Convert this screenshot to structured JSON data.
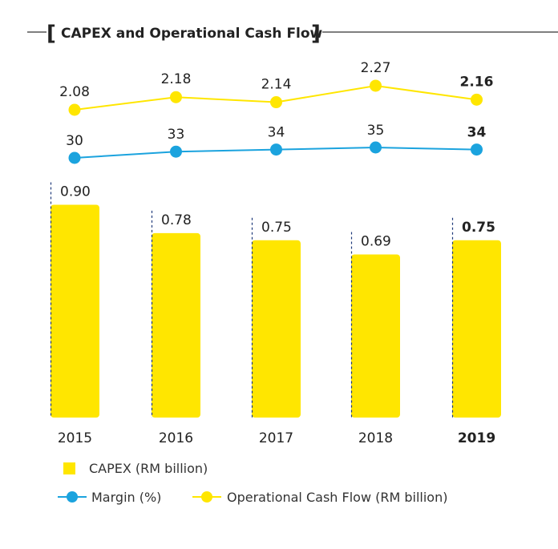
{
  "chart_data": {
    "type": "bar",
    "title": "CAPEX and Operational Cash Flow",
    "categories": [
      "2015",
      "2016",
      "2017",
      "2018",
      "2019"
    ],
    "highlight_category": "2019",
    "series": [
      {
        "name": "CAPEX (RM  billion)",
        "kind": "bar",
        "color": "#FFE600",
        "values": [
          0.9,
          0.78,
          0.75,
          0.69,
          0.75
        ],
        "labels": [
          "0.90",
          "0.78",
          "0.75",
          "0.69",
          "0.75"
        ]
      },
      {
        "name": "Margin (%)",
        "kind": "line",
        "color": "#1BA3DE",
        "values": [
          30,
          33,
          34,
          35,
          34
        ],
        "labels": [
          "30",
          "33",
          "34",
          "35",
          "34"
        ]
      },
      {
        "name": "Operational Cash Flow (RM billion)",
        "kind": "line",
        "color": "#FFE600",
        "values": [
          2.08,
          2.18,
          2.14,
          2.27,
          2.16
        ],
        "labels": [
          "2.08",
          "2.18",
          "2.14",
          "2.27",
          "2.16"
        ]
      }
    ],
    "legend_placement": "bottom",
    "grid": false
  },
  "colors": {
    "bar": "#FFE600",
    "ocf_line": "#FFE600",
    "margin_line": "#1BA3DE",
    "dash": "#1F3A7A",
    "text": "#222222"
  }
}
